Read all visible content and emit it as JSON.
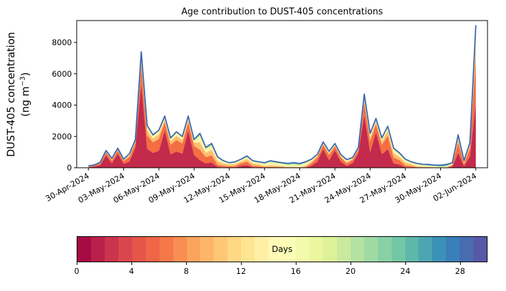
{
  "chart_data": {
    "type": "area",
    "stacked": true,
    "title": "Age contribution to DUST-405 concentrations",
    "ylabel": "DUST-405 concentration (ng m−3)",
    "ylabel_parts": {
      "line1": "DUST-405 concentration",
      "line2_prefix": "(ng m",
      "line2_sup": "−3",
      "line2_suffix": ")"
    },
    "x_unit": "days since 30-Apr-2024",
    "x_range": [
      -1,
      34
    ],
    "y_max": 9400,
    "y_ticks": [
      0,
      2000,
      4000,
      6000,
      8000
    ],
    "y_tick_labels": [
      "0",
      "2000",
      "4000",
      "6000",
      "8000"
    ],
    "x_ticks": {
      "positions": [
        0,
        3,
        6,
        9,
        12,
        15,
        18,
        21,
        24,
        27,
        30,
        33
      ],
      "labels": [
        "30-Apr-2024",
        "03-May-2024",
        "06-May-2024",
        "09-May-2024",
        "12-May-2024",
        "15-May-2024",
        "18-May-2024",
        "21-May-2024",
        "24-May-2024",
        "27-May-2024",
        "30-May-2024",
        "02-Jun-2024"
      ]
    },
    "line_color": "#3a66b0",
    "grid": false,
    "x": [
      0,
      0.5,
      1,
      1.5,
      2,
      2.5,
      3,
      3.5,
      4,
      4.5,
      5,
      5.5,
      6,
      6.5,
      7,
      7.5,
      8,
      8.5,
      9,
      9.5,
      10,
      10.5,
      11,
      11.5,
      12,
      12.5,
      13,
      13.5,
      14,
      14.5,
      15,
      15.5,
      16,
      16.5,
      17,
      17.5,
      18,
      18.5,
      19,
      19.5,
      20,
      20.5,
      21,
      21.5,
      22,
      22.5,
      23,
      23.5,
      24,
      24.5,
      25,
      25.5,
      26,
      26.5,
      27,
      27.5,
      28,
      28.5,
      29,
      29.5,
      30,
      30.5,
      31,
      31.5,
      32,
      32.5,
      33
    ],
    "total": [
      120,
      180,
      350,
      1100,
      600,
      1250,
      550,
      900,
      1800,
      7400,
      2700,
      2100,
      2400,
      3300,
      1900,
      2300,
      2000,
      3300,
      1800,
      2200,
      1300,
      1550,
      700,
      450,
      320,
      380,
      550,
      750,
      450,
      380,
      320,
      450,
      380,
      320,
      280,
      330,
      270,
      380,
      550,
      850,
      1650,
      1050,
      1550,
      850,
      520,
      650,
      1300,
      4700,
      2200,
      3150,
      1900,
      2650,
      1250,
      950,
      550,
      380,
      280,
      220,
      210,
      170,
      160,
      210,
      320,
      2100,
      450,
      1600,
      9100
    ],
    "age_bins_days": [
      [
        0,
        4
      ],
      [
        4,
        8
      ],
      [
        8,
        12
      ],
      [
        12,
        16
      ],
      [
        16,
        20
      ],
      [
        20,
        24
      ],
      [
        24,
        28
      ],
      [
        28,
        31
      ]
    ],
    "age_profiles": [
      [
        0.72,
        0.16,
        0.06,
        0.03,
        0.02,
        0.01,
        0.0,
        0.0
      ],
      [
        0.45,
        0.32,
        0.12,
        0.06,
        0.03,
        0.02,
        0.0,
        0.0
      ],
      [
        0.22,
        0.3,
        0.22,
        0.12,
        0.08,
        0.04,
        0.02,
        0.0
      ],
      [
        0.06,
        0.22,
        0.34,
        0.2,
        0.1,
        0.05,
        0.03,
        0.0
      ],
      [
        0.02,
        0.1,
        0.24,
        0.3,
        0.18,
        0.1,
        0.04,
        0.02
      ],
      [
        0.01,
        0.05,
        0.12,
        0.22,
        0.28,
        0.18,
        0.1,
        0.04
      ],
      [
        0.0,
        0.02,
        0.06,
        0.14,
        0.24,
        0.26,
        0.18,
        0.1
      ],
      [
        0.0,
        0.01,
        0.04,
        0.08,
        0.16,
        0.24,
        0.27,
        0.2
      ]
    ],
    "profile_index": [
      2,
      1,
      1,
      0,
      1,
      0,
      1,
      1,
      0,
      0,
      1,
      1,
      1,
      0,
      1,
      1,
      1,
      0,
      1,
      2,
      2,
      2,
      3,
      3,
      3,
      3,
      2,
      2,
      3,
      3,
      4,
      4,
      4,
      4,
      5,
      5,
      5,
      4,
      2,
      1,
      0,
      1,
      0,
      1,
      2,
      1,
      0,
      0,
      1,
      0,
      1,
      1,
      2,
      2,
      3,
      3,
      4,
      4,
      5,
      5,
      6,
      6,
      2,
      1,
      2,
      1,
      1
    ],
    "colormap_stops": [
      "#9e0142",
      "#d53e4f",
      "#f46d43",
      "#fdae61",
      "#fee08b",
      "#ffffbf",
      "#e6f598",
      "#abdda4",
      "#66c2a5",
      "#3288bd",
      "#5e4fa2"
    ],
    "colorbar": {
      "label": "Days",
      "min": 0,
      "max": 30,
      "segments": 30,
      "ticks": [
        0,
        4,
        8,
        12,
        16,
        20,
        24,
        28
      ],
      "tick_labels": [
        "0",
        "4",
        "8",
        "12",
        "16",
        "20",
        "24",
        "28"
      ]
    }
  }
}
